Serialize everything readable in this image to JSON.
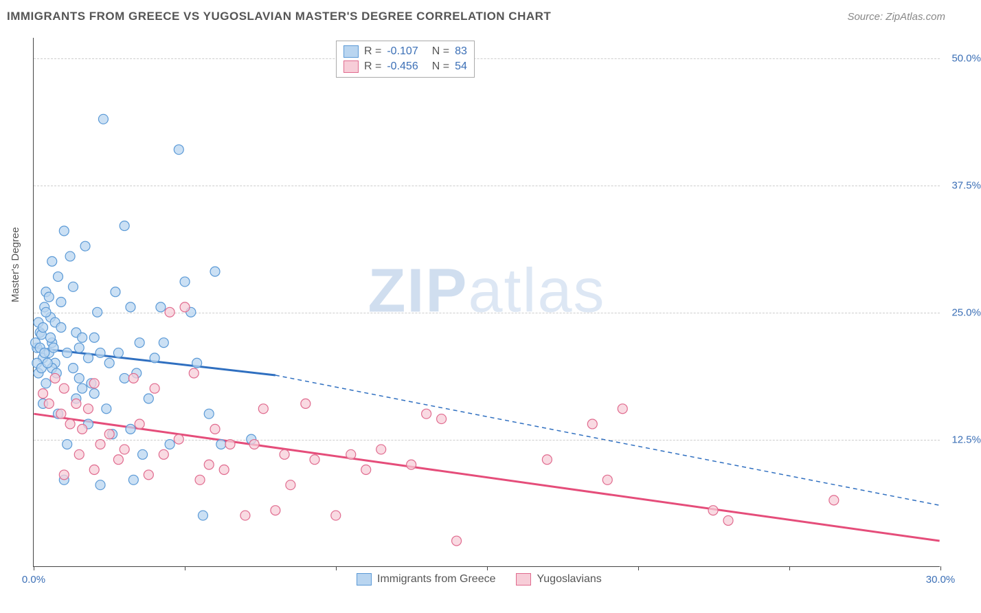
{
  "title": "IMMIGRANTS FROM GREECE VS YUGOSLAVIAN MASTER'S DEGREE CORRELATION CHART",
  "source": "Source: ZipAtlas.com",
  "watermark": {
    "bold": "ZIP",
    "rest": "atlas"
  },
  "ylabel": "Master's Degree",
  "chart": {
    "type": "scatter",
    "xlim": [
      0,
      30
    ],
    "ylim": [
      0,
      52
    ],
    "x_ticks": [
      0,
      5,
      10,
      15,
      20,
      25,
      30
    ],
    "x_tick_labels": [
      "0.0%",
      "",
      "",
      "",
      "",
      "",
      "30.0%"
    ],
    "y_ticks": [
      12.5,
      25.0,
      37.5,
      50.0
    ],
    "y_tick_labels": [
      "12.5%",
      "25.0%",
      "37.5%",
      "50.0%"
    ],
    "grid_color": "#cccccc",
    "axis_color": "#444444",
    "background_color": "#ffffff",
    "marker_radius": 7,
    "marker_stroke_width": 1.2,
    "line_width": 3,
    "dash_pattern": "6 5"
  },
  "series": [
    {
      "name": "Immigrants from Greece",
      "fill": "#b9d5f0",
      "stroke": "#5a99d6",
      "line_color": "#2f6fc0",
      "R": "-0.107",
      "N": "83",
      "trend_solid": {
        "x1": 0,
        "y1": 21.5,
        "x2": 8,
        "y2": 18.8
      },
      "trend_dashed": {
        "x1": 8,
        "y1": 18.8,
        "x2": 30,
        "y2": 6.0
      },
      "points": [
        [
          0.1,
          21.5
        ],
        [
          0.2,
          23.0
        ],
        [
          0.15,
          19.0
        ],
        [
          0.3,
          20.5
        ],
        [
          0.25,
          22.8
        ],
        [
          0.4,
          27.0
        ],
        [
          0.35,
          25.5
        ],
        [
          0.5,
          21.0
        ],
        [
          0.6,
          22.0
        ],
        [
          0.55,
          24.5
        ],
        [
          0.7,
          20.0
        ],
        [
          0.8,
          28.5
        ],
        [
          0.9,
          26.0
        ],
        [
          1.0,
          33.0
        ],
        [
          1.1,
          21.0
        ],
        [
          1.2,
          30.5
        ],
        [
          1.3,
          19.5
        ],
        [
          1.4,
          23.0
        ],
        [
          1.5,
          21.5
        ],
        [
          1.6,
          17.5
        ],
        [
          1.7,
          31.5
        ],
        [
          1.8,
          20.5
        ],
        [
          1.9,
          18.0
        ],
        [
          2.0,
          22.5
        ],
        [
          2.1,
          25.0
        ],
        [
          2.2,
          8.0
        ],
        [
          2.3,
          44.0
        ],
        [
          2.4,
          15.5
        ],
        [
          2.5,
          20.0
        ],
        [
          2.6,
          13.0
        ],
        [
          2.7,
          27.0
        ],
        [
          2.8,
          21.0
        ],
        [
          3.0,
          33.5
        ],
        [
          3.2,
          25.5
        ],
        [
          3.3,
          8.5
        ],
        [
          3.4,
          19.0
        ],
        [
          3.5,
          22.0
        ],
        [
          3.8,
          16.5
        ],
        [
          4.0,
          20.5
        ],
        [
          4.2,
          25.5
        ],
        [
          4.5,
          12.0
        ],
        [
          4.8,
          41.0
        ],
        [
          5.0,
          28.0
        ],
        [
          5.2,
          25.0
        ],
        [
          5.4,
          20.0
        ],
        [
          5.6,
          5.0
        ],
        [
          5.8,
          15.0
        ],
        [
          6.0,
          29.0
        ],
        [
          6.2,
          12.0
        ],
        [
          7.2,
          12.5
        ],
        [
          1.0,
          8.5
        ],
        [
          0.4,
          18.0
        ],
        [
          0.6,
          19.5
        ],
        [
          0.3,
          16.0
        ],
        [
          0.8,
          15.0
        ],
        [
          1.1,
          12.0
        ],
        [
          1.4,
          16.5
        ],
        [
          1.6,
          22.5
        ],
        [
          1.8,
          14.0
        ],
        [
          2.0,
          17.0
        ],
        [
          2.2,
          21.0
        ],
        [
          3.0,
          18.5
        ],
        [
          3.2,
          13.5
        ],
        [
          3.6,
          11.0
        ],
        [
          4.3,
          22.0
        ],
        [
          0.05,
          22.0
        ],
        [
          0.1,
          20.0
        ],
        [
          0.15,
          24.0
        ],
        [
          0.2,
          21.5
        ],
        [
          0.25,
          19.5
        ],
        [
          0.3,
          23.5
        ],
        [
          0.35,
          21.0
        ],
        [
          0.4,
          25.0
        ],
        [
          0.45,
          20.0
        ],
        [
          0.5,
          26.5
        ],
        [
          0.55,
          22.5
        ],
        [
          0.6,
          30.0
        ],
        [
          0.65,
          21.5
        ],
        [
          0.7,
          24.0
        ],
        [
          0.75,
          19.0
        ],
        [
          0.9,
          23.5
        ],
        [
          1.3,
          27.5
        ],
        [
          1.5,
          18.5
        ]
      ]
    },
    {
      "name": "Yugoslavians",
      "fill": "#f7cdd8",
      "stroke": "#e06a8e",
      "line_color": "#e54d7a",
      "R": "-0.456",
      "N": "54",
      "trend_solid": {
        "x1": 0,
        "y1": 15.0,
        "x2": 30,
        "y2": 2.5
      },
      "trend_dashed": null,
      "points": [
        [
          0.3,
          17.0
        ],
        [
          0.5,
          16.0
        ],
        [
          0.7,
          18.5
        ],
        [
          0.9,
          15.0
        ],
        [
          1.0,
          17.5
        ],
        [
          1.2,
          14.0
        ],
        [
          1.4,
          16.0
        ],
        [
          1.6,
          13.5
        ],
        [
          1.8,
          15.5
        ],
        [
          2.0,
          18.0
        ],
        [
          2.2,
          12.0
        ],
        [
          2.5,
          13.0
        ],
        [
          2.8,
          10.5
        ],
        [
          3.0,
          11.5
        ],
        [
          3.3,
          18.5
        ],
        [
          3.5,
          14.0
        ],
        [
          3.8,
          9.0
        ],
        [
          4.0,
          17.5
        ],
        [
          4.3,
          11.0
        ],
        [
          4.5,
          25.0
        ],
        [
          4.8,
          12.5
        ],
        [
          5.0,
          25.5
        ],
        [
          5.3,
          19.0
        ],
        [
          5.5,
          8.5
        ],
        [
          5.8,
          10.0
        ],
        [
          6.0,
          13.5
        ],
        [
          6.3,
          9.5
        ],
        [
          6.5,
          12.0
        ],
        [
          7.0,
          5.0
        ],
        [
          7.3,
          12.0
        ],
        [
          7.6,
          15.5
        ],
        [
          8.0,
          5.5
        ],
        [
          8.3,
          11.0
        ],
        [
          8.5,
          8.0
        ],
        [
          9.0,
          16.0
        ],
        [
          9.3,
          10.5
        ],
        [
          10.0,
          5.0
        ],
        [
          10.5,
          11.0
        ],
        [
          11.0,
          9.5
        ],
        [
          11.5,
          11.5
        ],
        [
          12.5,
          10.0
        ],
        [
          13.0,
          15.0
        ],
        [
          13.5,
          14.5
        ],
        [
          14.0,
          2.5
        ],
        [
          17.0,
          10.5
        ],
        [
          18.5,
          14.0
        ],
        [
          19.0,
          8.5
        ],
        [
          19.5,
          15.5
        ],
        [
          22.5,
          5.5
        ],
        [
          23.0,
          4.5
        ],
        [
          26.5,
          6.5
        ],
        [
          1.0,
          9.0
        ],
        [
          1.5,
          11.0
        ],
        [
          2.0,
          9.5
        ]
      ]
    }
  ],
  "legend_bottom": [
    {
      "label": "Immigrants from Greece",
      "series": 0
    },
    {
      "label": "Yugoslavians",
      "series": 1
    }
  ]
}
